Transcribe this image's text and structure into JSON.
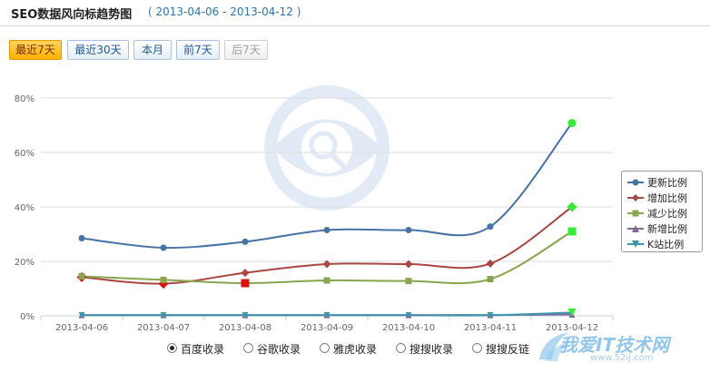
{
  "header": {
    "title": "SEO数据风向标趋势图",
    "range": "( 2013-04-06 - 2013-04-12 )"
  },
  "period_buttons": [
    {
      "label": "最近7天",
      "state": "active"
    },
    {
      "label": "最近30天",
      "state": "normal"
    },
    {
      "label": "本月",
      "state": "normal"
    },
    {
      "label": "前7天",
      "state": "normal"
    },
    {
      "label": "后7天",
      "state": "disabled"
    }
  ],
  "chart_data": {
    "type": "line",
    "x": [
      "2013-04-06",
      "2013-04-07",
      "2013-04-08",
      "2013-04-09",
      "2013-04-10",
      "2013-04-11",
      "2013-04-12"
    ],
    "ylim": [
      0,
      80
    ],
    "yticks": [
      "0%",
      "20%",
      "40%",
      "60%",
      "80%"
    ],
    "grid": true,
    "legend_position": "right",
    "series": [
      {
        "name": "更新比例",
        "color": "#4572a7",
        "marker": "circle",
        "values": [
          28.5,
          25,
          27.2,
          31.5,
          31.5,
          32.8,
          70.8
        ]
      },
      {
        "name": "增加比例",
        "color": "#aa4643",
        "marker": "diamond",
        "values": [
          14.2,
          11.8,
          15.8,
          19,
          19,
          19.2,
          40
        ]
      },
      {
        "name": "减少比例",
        "color": "#89a54e",
        "marker": "square",
        "values": [
          14.5,
          13.2,
          12,
          13,
          12.8,
          13.5,
          31
        ]
      },
      {
        "name": "新增比例",
        "color": "#80699b",
        "marker": "triangle",
        "values": [
          0.3,
          0.3,
          0.3,
          0.3,
          0.3,
          0.3,
          0.5
        ]
      },
      {
        "name": "K站比例",
        "color": "#3d96ae",
        "marker": "triangle-down",
        "values": [
          0.2,
          0.2,
          0.2,
          0.2,
          0.2,
          0.2,
          1.2
        ]
      }
    ],
    "highlights": [
      {
        "series": 1,
        "index": 1,
        "color": "#e01010"
      },
      {
        "series": 2,
        "index": 2,
        "color": "#e01010"
      },
      {
        "series": 1,
        "index": 0,
        "color": "#e01010"
      },
      {
        "series": 0,
        "index": 6,
        "color": "#33ee33"
      },
      {
        "series": 1,
        "index": 6,
        "color": "#33ee33"
      },
      {
        "series": 2,
        "index": 6,
        "color": "#33ee33"
      },
      {
        "series": 4,
        "index": 6,
        "color": "#33ee33"
      }
    ]
  },
  "sources": {
    "selected": 0,
    "items": [
      "百度收录",
      "谷歌收录",
      "雅虎收录",
      "搜搜收录",
      "搜搜反链"
    ]
  },
  "watermark": {
    "text": "我爱IT技术网",
    "url": "www.52ij.com"
  }
}
